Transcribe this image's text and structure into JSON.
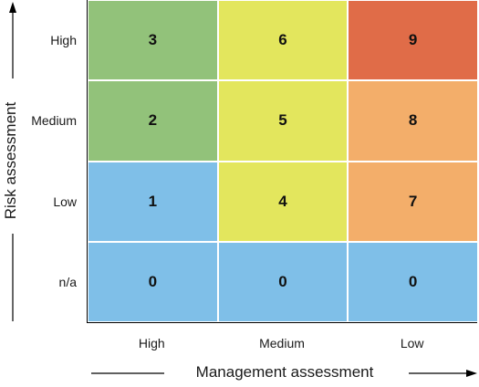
{
  "x_axis": {
    "title": "Management assessment",
    "labels": [
      "High",
      "Medium",
      "Low"
    ]
  },
  "y_axis": {
    "title": "Risk assessment",
    "labels_top_to_bottom": [
      "High",
      "Medium",
      "Low",
      "n/a"
    ]
  },
  "grid": [
    [
      "3",
      "6",
      "9"
    ],
    [
      "2",
      "5",
      "8"
    ],
    [
      "1",
      "4",
      "7"
    ],
    [
      "0",
      "0",
      "0"
    ]
  ],
  "colors": [
    [
      "#92c27a",
      "#e3e65d",
      "#e06c48"
    ],
    [
      "#92c27a",
      "#e3e65d",
      "#f3ae6a"
    ],
    [
      "#7fbfe8",
      "#e3e65d",
      "#f3ae6a"
    ],
    [
      "#7fbfe8",
      "#7fbfe8",
      "#7fbfe8"
    ]
  ]
}
